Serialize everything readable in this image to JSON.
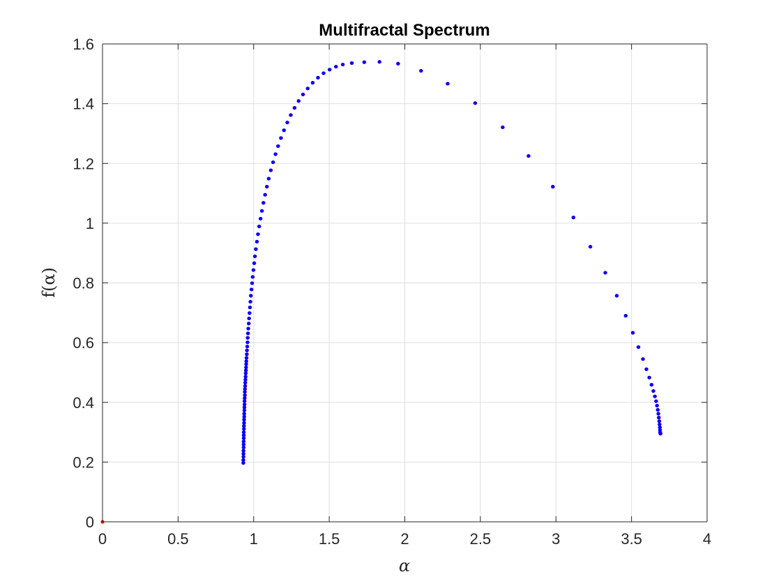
{
  "chart_data": {
    "type": "scatter",
    "title": "Multifractal Spectrum",
    "xlabel": "α",
    "ylabel": "f(α)",
    "xlim": [
      0,
      4
    ],
    "ylim": [
      0,
      1.6
    ],
    "xticks": [
      0,
      0.5,
      1,
      1.5,
      2,
      2.5,
      3,
      3.5,
      4
    ],
    "xtick_labels": [
      "0",
      "0.5",
      "1",
      "1.5",
      "2",
      "2.5",
      "3",
      "3.5",
      "4"
    ],
    "yticks": [
      0,
      0.2,
      0.4,
      0.6,
      0.8,
      1,
      1.2,
      1.4,
      1.6
    ],
    "ytick_labels": [
      "0",
      "0.2",
      "0.4",
      "0.6",
      "0.8",
      "1",
      "1.2",
      "1.4",
      "1.6"
    ],
    "grid": true,
    "box": true,
    "colors": {
      "points": "#0000ff",
      "marker_under": "#ff0000",
      "axis": "#262626",
      "grid": "#dfdfdf"
    },
    "series": [
      {
        "color": "#0000ff",
        "x": [
          0.931,
          0.931,
          0.932,
          0.932,
          0.932,
          0.933,
          0.933,
          0.933,
          0.934,
          0.934,
          0.934,
          0.935,
          0.935,
          0.936,
          0.936,
          0.937,
          0.937,
          0.938,
          0.938,
          0.939,
          0.939,
          0.94,
          0.941,
          0.941,
          0.942,
          0.943,
          0.944,
          0.945,
          0.946,
          0.947,
          0.948,
          0.949,
          0.95,
          0.951,
          0.952,
          0.954,
          0.955,
          0.957,
          0.959,
          0.96,
          0.962,
          0.964,
          0.967,
          0.969,
          0.972,
          0.975,
          0.978,
          0.981,
          0.985,
          0.989,
          0.993,
          0.998,
          1.003,
          1.008,
          1.014,
          1.021,
          1.028,
          1.036,
          1.045,
          1.054,
          1.064,
          1.075,
          1.087,
          1.099,
          1.113,
          1.128,
          1.144,
          1.161,
          1.18,
          1.2,
          1.222,
          1.245,
          1.27,
          1.297,
          1.326,
          1.357,
          1.39,
          1.425,
          1.462,
          1.502,
          1.544,
          1.589,
          1.649,
          1.731,
          1.832,
          1.955,
          2.107,
          2.283,
          2.465,
          2.647,
          2.818,
          2.979,
          3.115,
          3.227,
          3.326,
          3.402,
          3.461,
          3.508,
          3.545,
          3.575,
          3.598,
          3.617,
          3.632,
          3.644,
          3.654,
          3.662,
          3.668,
          3.673,
          3.677,
          3.68,
          3.683,
          3.685,
          3.687,
          3.688,
          3.689,
          3.69,
          3.691
        ],
        "y": [
          0.197,
          0.207,
          0.218,
          0.228,
          0.238,
          0.249,
          0.259,
          0.269,
          0.28,
          0.29,
          0.3,
          0.311,
          0.321,
          0.331,
          0.342,
          0.352,
          0.362,
          0.373,
          0.383,
          0.393,
          0.404,
          0.414,
          0.424,
          0.435,
          0.445,
          0.455,
          0.466,
          0.476,
          0.486,
          0.497,
          0.507,
          0.517,
          0.528,
          0.538,
          0.549,
          0.561,
          0.574,
          0.587,
          0.601,
          0.616,
          0.631,
          0.647,
          0.664,
          0.681,
          0.699,
          0.718,
          0.737,
          0.757,
          0.778,
          0.799,
          0.82,
          0.843,
          0.866,
          0.889,
          0.913,
          0.938,
          0.963,
          0.989,
          1.015,
          1.041,
          1.068,
          1.095,
          1.122,
          1.149,
          1.177,
          1.204,
          1.231,
          1.258,
          1.285,
          1.311,
          1.337,
          1.362,
          1.386,
          1.409,
          1.431,
          1.451,
          1.47,
          1.487,
          1.502,
          1.514,
          1.524,
          1.531,
          1.536,
          1.539,
          1.54,
          1.534,
          1.51,
          1.467,
          1.402,
          1.321,
          1.225,
          1.122,
          1.019,
          0.921,
          0.834,
          0.757,
          0.69,
          0.633,
          0.585,
          0.545,
          0.511,
          0.483,
          0.459,
          0.438,
          0.42,
          0.404,
          0.389,
          0.375,
          0.362,
          0.349,
          0.337,
          0.326,
          0.316,
          0.307,
          0.3,
          0.297,
          0.295
        ]
      }
    ],
    "extra_point": {
      "x": 0,
      "y": 0,
      "color": "#ff0000"
    }
  }
}
